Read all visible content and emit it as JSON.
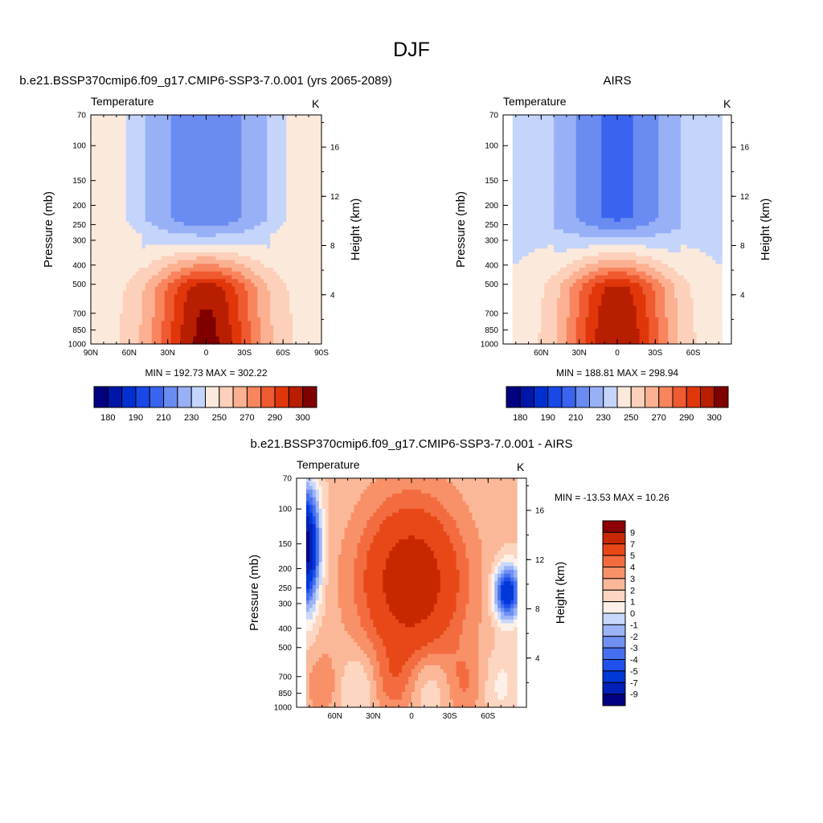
{
  "page": {
    "title": "DJF"
  },
  "chart_data": [
    {
      "type": "heatmap",
      "title": "b.e21.BSSP370cmip6.f09_g17.CMIP6-SSP3-7.0.001 (yrs 2065-2089)",
      "variable": "Temperature",
      "units": "K",
      "xlabel": "",
      "ylabel": "Pressure (mb)",
      "ylabel_right": "Height (km)",
      "x_ticks": [
        "90N",
        "60N",
        "30N",
        "0",
        "30S",
        "60S",
        "90S"
      ],
      "y_ticks": [
        "70",
        "100",
        "150",
        "200",
        "250",
        "300",
        "400",
        "500",
        "700",
        "850",
        "1000"
      ],
      "y_right_ticks": [
        "16",
        "12",
        "8",
        "4"
      ],
      "stats": "MIN = 192.73  MAX = 302.22",
      "colorbar_labels": [
        "180",
        "190",
        "210",
        "230",
        "250",
        "270",
        "290",
        "300"
      ],
      "colorbar_orientation": "horizontal"
    },
    {
      "type": "heatmap",
      "title": "AIRS",
      "variable": "Temperature",
      "units": "K",
      "xlabel": "",
      "ylabel": "Pressure (mb)",
      "ylabel_right": "Height (km)",
      "x_ticks": [
        "60N",
        "30N",
        "0",
        "30S",
        "60S"
      ],
      "y_ticks": [
        "70",
        "100",
        "150",
        "200",
        "250",
        "300",
        "400",
        "500",
        "700",
        "850",
        "1000"
      ],
      "y_right_ticks": [
        "16",
        "12",
        "8",
        "4"
      ],
      "stats": "MIN = 188.81  MAX = 298.94",
      "colorbar_labels": [
        "180",
        "190",
        "210",
        "230",
        "250",
        "270",
        "290",
        "300"
      ],
      "colorbar_orientation": "horizontal"
    },
    {
      "type": "heatmap",
      "title": "b.e21.BSSP370cmip6.f09_g17.CMIP6-SSP3-7.0.001 - AIRS",
      "variable": "Temperature",
      "units": "K",
      "xlabel": "",
      "ylabel": "Pressure (mb)",
      "ylabel_right": "Height (km)",
      "x_ticks": [
        "60N",
        "30N",
        "0",
        "30S",
        "60S"
      ],
      "y_ticks": [
        "70",
        "100",
        "150",
        "200",
        "250",
        "300",
        "400",
        "500",
        "700",
        "850",
        "1000"
      ],
      "y_right_ticks": [
        "16",
        "12",
        "8",
        "4"
      ],
      "stats": "MIN = -13.53  MAX =  10.26",
      "colorbar_labels": [
        "9",
        "7",
        "5",
        "4",
        "3",
        "2",
        "1",
        "0",
        "-1",
        "-2",
        "-3",
        "-4",
        "-5",
        "-7",
        "-9"
      ],
      "colorbar_orientation": "vertical"
    }
  ],
  "colors": {
    "blue_red_16": [
      "#000080",
      "#0016a8",
      "#0030d0",
      "#1848e8",
      "#3a64f0",
      "#6a8cf2",
      "#98b0f6",
      "#c4d4fb",
      "#fbe9dc",
      "#fcd0ba",
      "#fbb092",
      "#f8855e",
      "#f05a30",
      "#e0360a",
      "#b81e00",
      "#800000"
    ],
    "diff_16": [
      "#000080",
      "#0020b8",
      "#0038d8",
      "#1f50ec",
      "#4470f0",
      "#7090f2",
      "#9cb4f6",
      "#c8d8fb",
      "#fdf0e8",
      "#fcd6c0",
      "#fbb898",
      "#f89068",
      "#f36c40",
      "#e84818",
      "#c82800",
      "#8b0000"
    ]
  }
}
